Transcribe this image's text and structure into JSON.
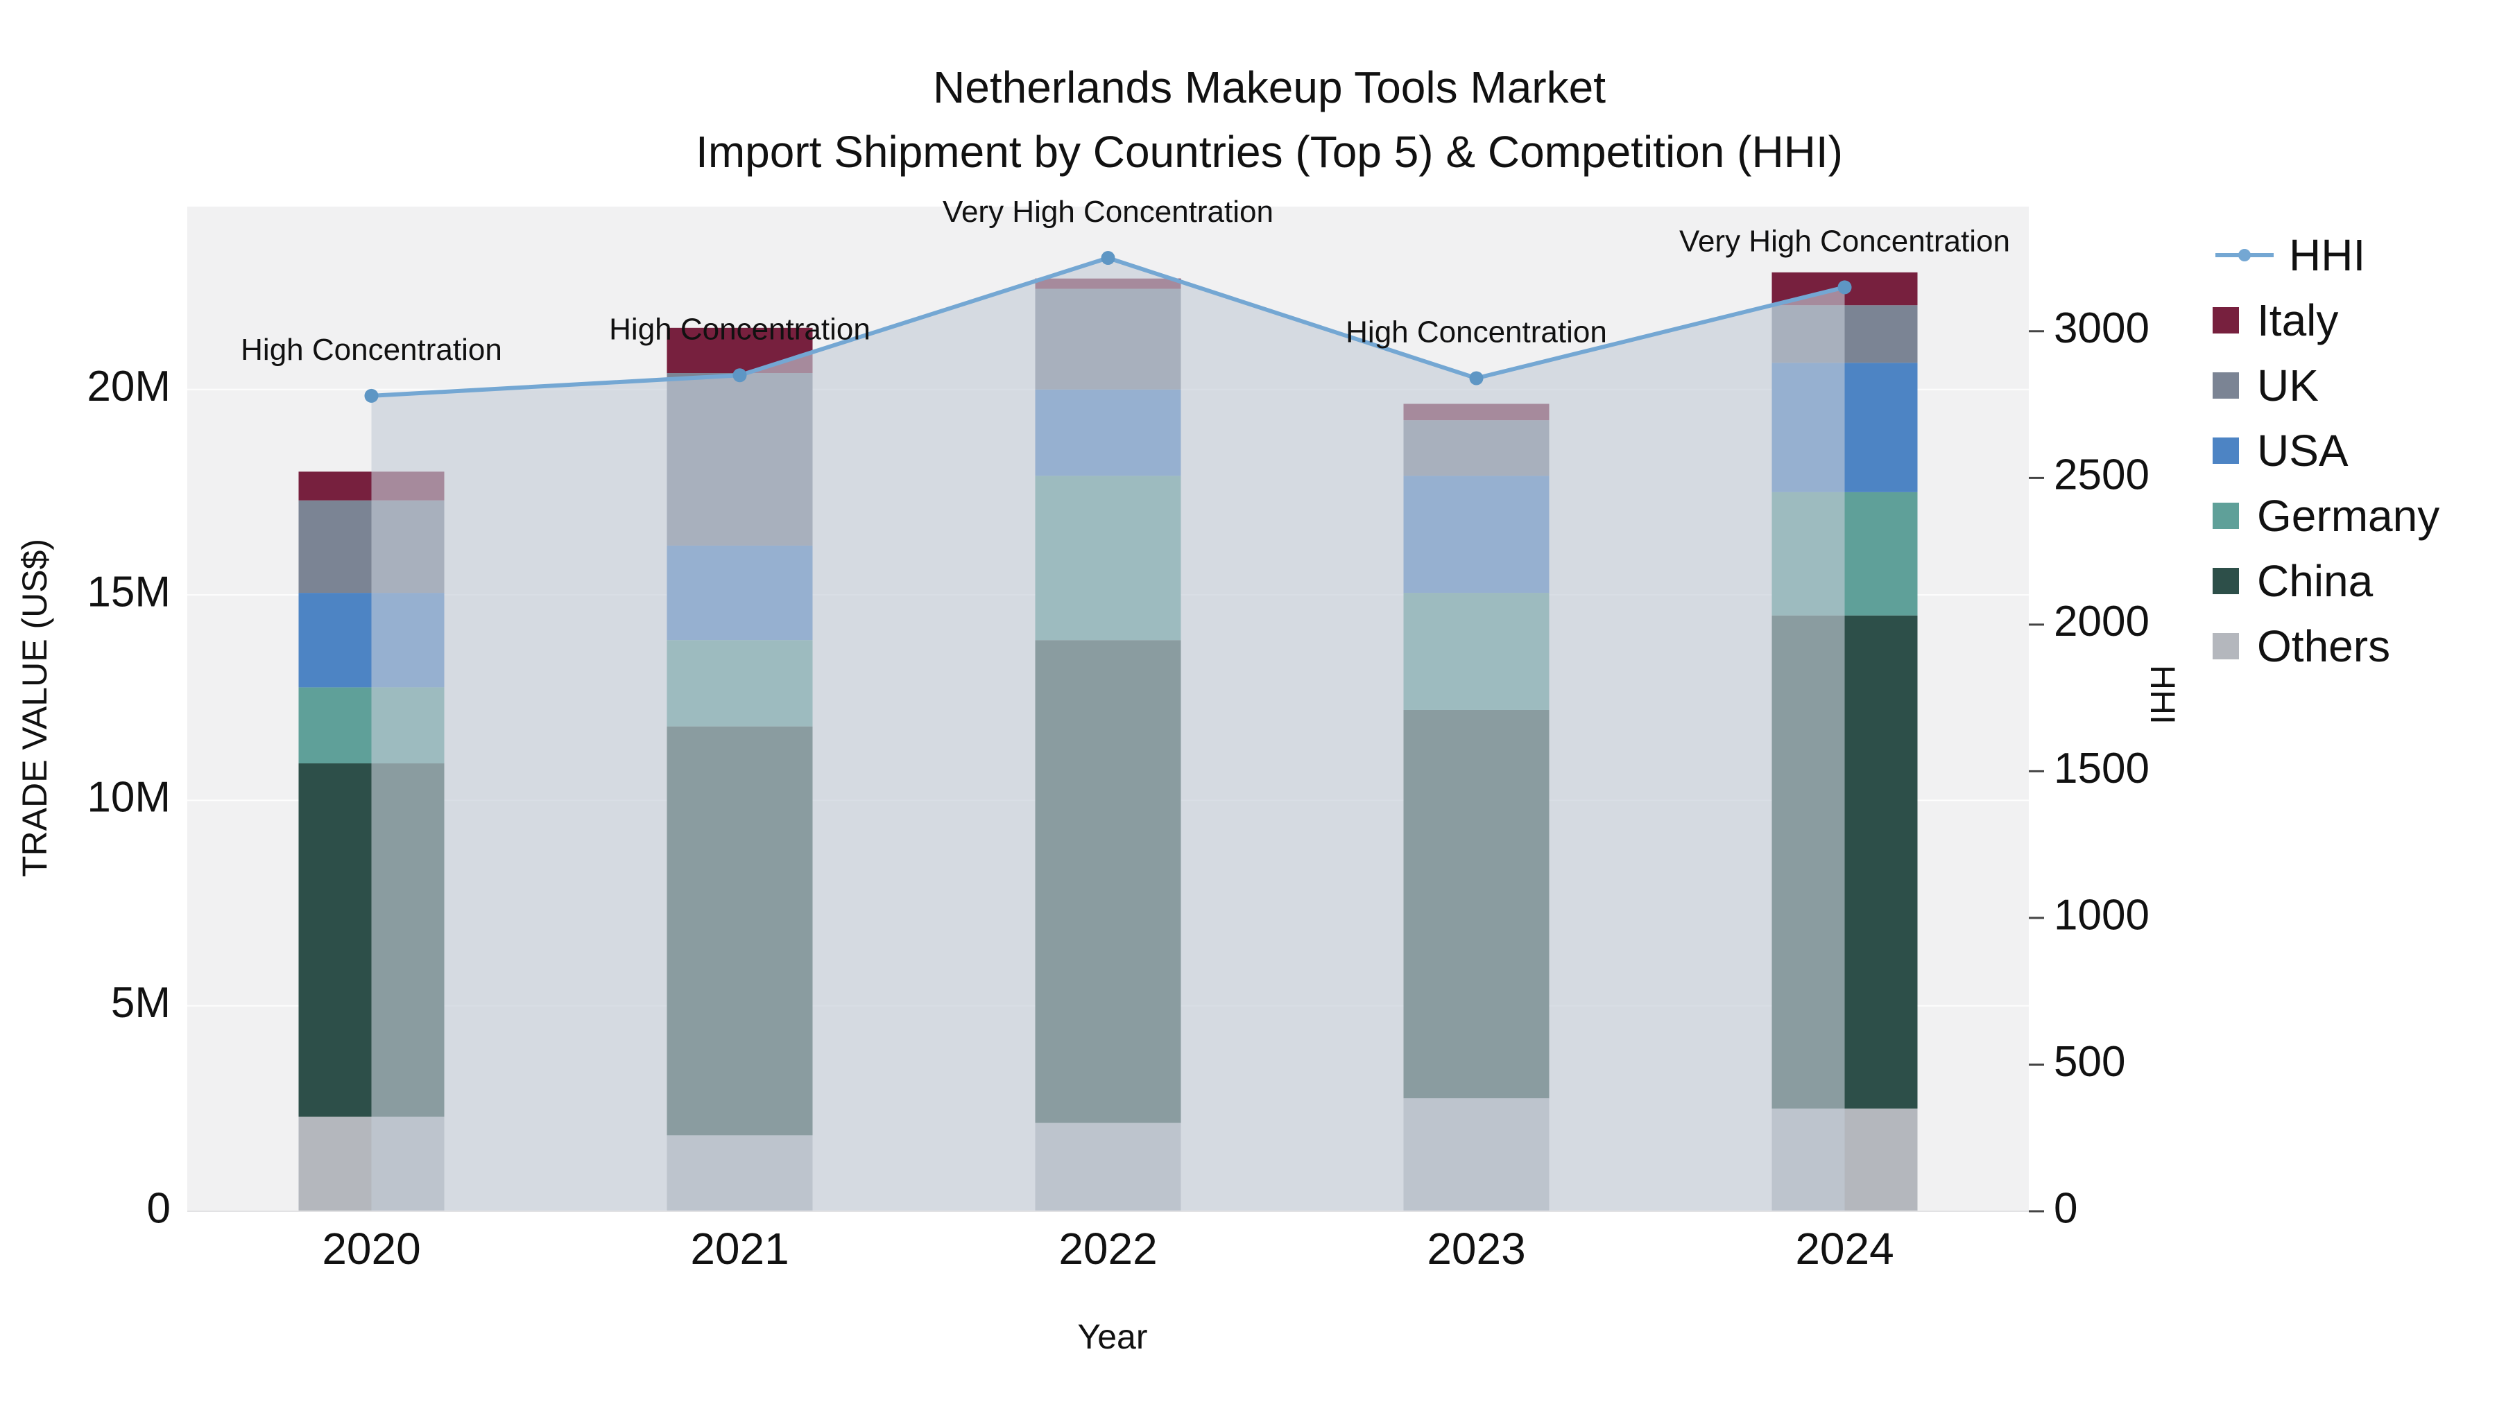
{
  "title": {
    "line1": "Netherlands Makeup Tools Market",
    "line2": "Import Shipment by Countries (Top 5) & Competition (HHI)"
  },
  "axes": {
    "xlabel": "Year",
    "ylabel_left": "TRADE VALUE (US$)",
    "ylabel_right": "HHI"
  },
  "chart_data": {
    "type": "bar",
    "subtype": "stacked-bars-with-hhi-line",
    "title": "Netherlands Makeup Tools Market — Import Shipment by Countries (Top 5) & Competition (HHI)",
    "categories": [
      "2020",
      "2021",
      "2022",
      "2023",
      "2024"
    ],
    "xlabel": "Year",
    "ylabel_left": "TRADE VALUE (US$)",
    "ylabel_right": "HHI",
    "unit": "million US$",
    "grid": true,
    "legend_position": "right",
    "series": [
      {
        "name": "Others",
        "color": "#b4b7bd",
        "values": [
          2.3,
          1.85,
          2.15,
          2.75,
          2.5
        ]
      },
      {
        "name": "China",
        "color": "#2d4f49",
        "values": [
          8.6,
          9.95,
          11.75,
          9.45,
          12.0
        ]
      },
      {
        "name": "Germany",
        "color": "#5fa099",
        "values": [
          1.85,
          2.1,
          4.0,
          2.85,
          3.0
        ]
      },
      {
        "name": "USA",
        "color": "#4d84c4",
        "values": [
          2.3,
          2.3,
          2.1,
          2.85,
          3.15
        ]
      },
      {
        "name": "UK",
        "color": "#7b8494",
        "values": [
          2.25,
          4.2,
          2.45,
          1.35,
          1.4
        ]
      },
      {
        "name": "Italy",
        "color": "#77203e",
        "values": [
          0.7,
          1.1,
          0.25,
          0.4,
          0.8
        ]
      }
    ],
    "totals": [
      18.0,
      21.5,
      22.7,
      19.65,
      22.85
    ],
    "line_series": {
      "name": "HHI",
      "color": "#74a7d3",
      "marker_color": "#5e96c4",
      "fill_color": "rgba(196,204,215,0.62)",
      "values": [
        2780,
        2850,
        3250,
        2840,
        3150
      ]
    },
    "annotations": [
      {
        "x": "2020",
        "text": "High Concentration"
      },
      {
        "x": "2021",
        "text": "High Concentration"
      },
      {
        "x": "2022",
        "text": "Very High Concentration"
      },
      {
        "x": "2023",
        "text": "High Concentration"
      },
      {
        "x": "2024",
        "text": "Very High Concentration"
      }
    ],
    "left_axis": {
      "tick_values": [
        0,
        5,
        10,
        15,
        20
      ],
      "tick_labels": [
        "0",
        "5M",
        "10M",
        "15M",
        "20M"
      ],
      "range": [
        0,
        24.45
      ]
    },
    "right_axis": {
      "tick_values": [
        0,
        500,
        1000,
        1500,
        2000,
        2500,
        3000
      ],
      "tick_labels": [
        "0",
        "500",
        "1000",
        "1500",
        "2000",
        "2500",
        "3000"
      ],
      "range": [
        0,
        3425
      ]
    },
    "plot_bg_color": "#f1f1f2"
  },
  "legend": {
    "items": [
      {
        "name": "HHI",
        "marker": "line",
        "color": "#74a7d3"
      },
      {
        "name": "Italy",
        "marker": "square",
        "color": "#77203e"
      },
      {
        "name": "UK",
        "marker": "square",
        "color": "#7b8494"
      },
      {
        "name": "USA",
        "marker": "square",
        "color": "#4d84c4"
      },
      {
        "name": "Germany",
        "marker": "square",
        "color": "#5fa099"
      },
      {
        "name": "China",
        "marker": "square",
        "color": "#2d4f49"
      },
      {
        "name": "Others",
        "marker": "square",
        "color": "#b4b7bd"
      }
    ]
  }
}
